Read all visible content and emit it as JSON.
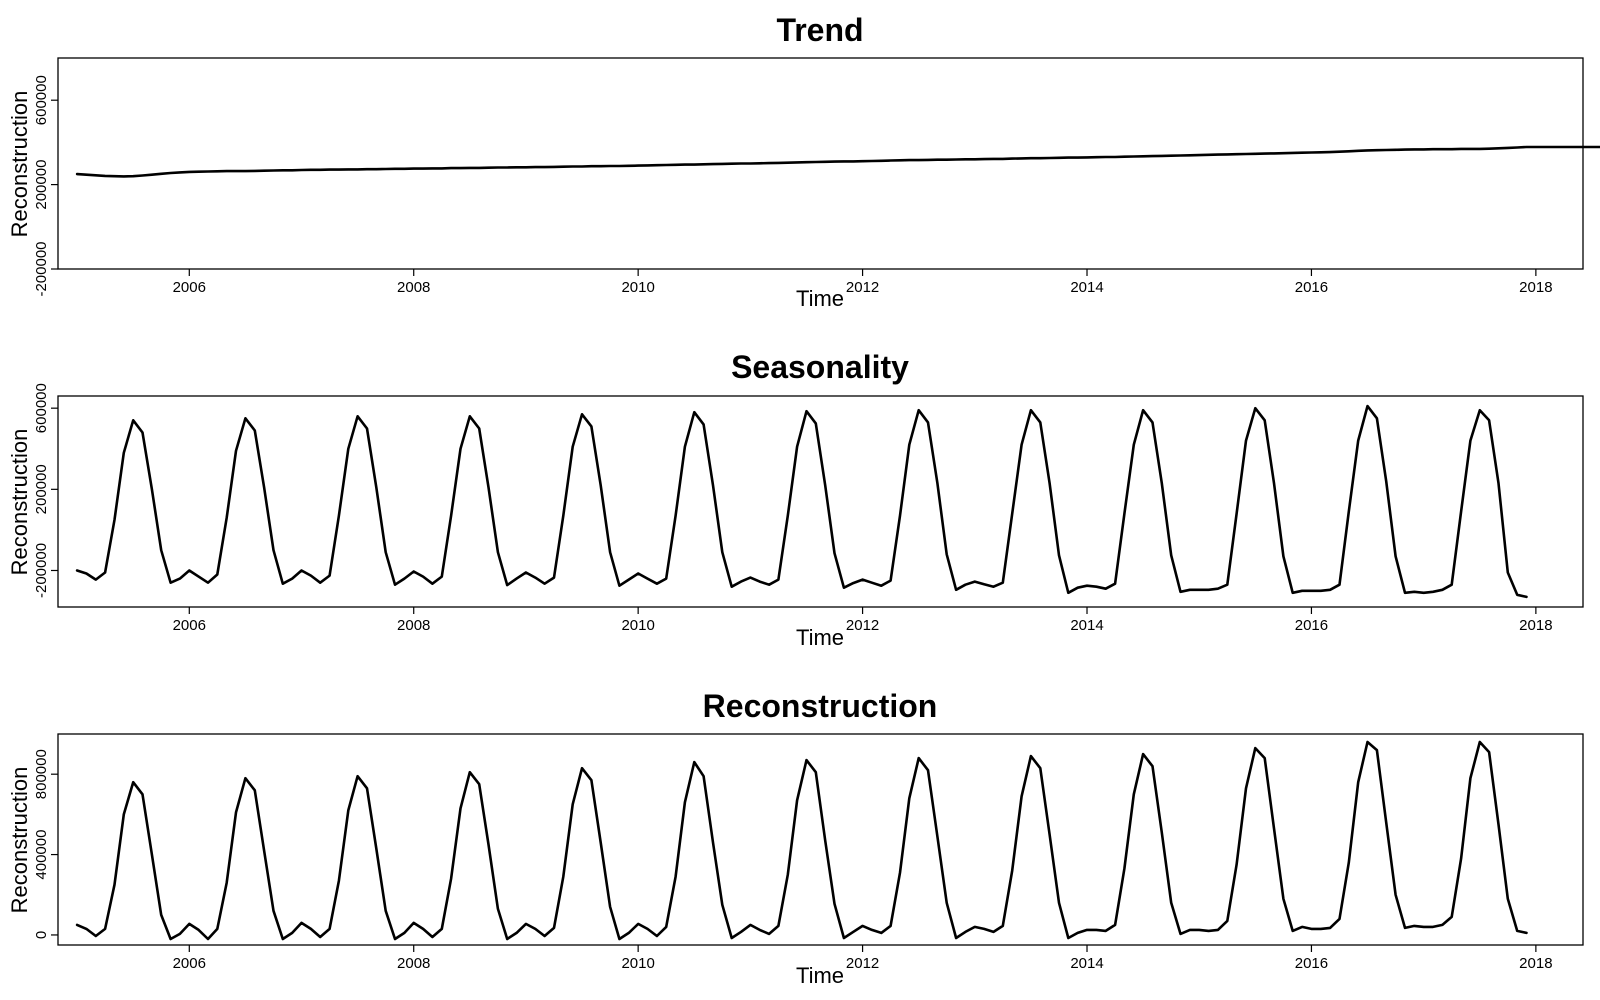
{
  "chart_data": [
    {
      "type": "line",
      "title": "Trend",
      "xlabel": "Time",
      "ylabel": "Reconstruction",
      "xlim": [
        2004.83,
        2018.42
      ],
      "ylim": [
        -200000,
        800000
      ],
      "xticks": [
        "2006",
        "2008",
        "2010",
        "2012",
        "2014",
        "2016",
        "2018"
      ],
      "yticks": [
        "-200000",
        "200000",
        "600000"
      ],
      "x_start": 2005.0,
      "x_step": 0.08333333,
      "series": [
        {
          "values": [
            250000,
            247000,
            244000,
            241000,
            240000,
            239000,
            240000,
            243000,
            247000,
            251000,
            255000,
            258000,
            260000,
            261000,
            262000,
            263000,
            264000,
            264000,
            264000,
            265000,
            266000,
            267000,
            268000,
            268000,
            269000,
            270000,
            270000,
            271000,
            271000,
            272000,
            272000,
            273000,
            273000,
            274000,
            275000,
            275000,
            276000,
            276000,
            277000,
            277000,
            278000,
            278000,
            279000,
            279000,
            280000,
            281000,
            281000,
            282000,
            282000,
            283000,
            283000,
            284000,
            285000,
            286000,
            286000,
            287000,
            287000,
            288000,
            288000,
            289000,
            290000,
            291000,
            292000,
            293000,
            294000,
            295000,
            295000,
            296000,
            297000,
            298000,
            299000,
            300000,
            300000,
            301000,
            302000,
            303000,
            304000,
            305000,
            306000,
            307000,
            308000,
            309000,
            310000,
            310000,
            311000,
            312000,
            313000,
            314000,
            315000,
            316000,
            316000,
            317000,
            318000,
            318000,
            319000,
            320000,
            320000,
            321000,
            322000,
            322000,
            323000,
            324000,
            325000,
            325000,
            326000,
            327000,
            328000,
            328000,
            329000,
            330000,
            331000,
            331000,
            332000,
            333000,
            334000,
            335000,
            336000,
            337000,
            338000,
            339000,
            340000,
            341000,
            342000,
            343000,
            344000,
            345000,
            346000,
            347000,
            348000,
            349000,
            350000,
            351000,
            352000,
            353000,
            354000,
            356000,
            358000,
            360000,
            362000,
            363000,
            364000,
            365000,
            366000,
            367000,
            367000,
            368000,
            368000,
            368000,
            369000,
            369000,
            369000,
            370000,
            372000,
            374000,
            376000,
            378000,
            378000,
            378000,
            378000,
            378000,
            378000,
            378000,
            378000,
            378000,
            378000,
            378000,
            378000,
            379000,
            382000,
            386000,
            390000,
            394000,
            398000,
            402000,
            405000,
            408000,
            411000,
            412000,
            408000,
            403000,
            398000,
            394000,
            392000
          ]
        }
      ]
    },
    {
      "type": "line",
      "title": "Seasonality",
      "xlabel": "Time",
      "ylabel": "Reconstruction",
      "xlim": [
        2004.83,
        2018.42
      ],
      "ylim": [
        -380000,
        660000
      ],
      "xticks": [
        "2006",
        "2008",
        "2010",
        "2012",
        "2014",
        "2016",
        "2018"
      ],
      "yticks": [
        "-200000",
        "200000",
        "600000"
      ],
      "x_start": 2005.0,
      "x_step": 0.08333333,
      "series": [
        {
          "values": [
            -200000,
            -215000,
            -245000,
            -210000,
            50000,
            380000,
            540000,
            480000,
            200000,
            -100000,
            -260000,
            -240000,
            -200000,
            -230000,
            -260000,
            -220000,
            60000,
            390000,
            550000,
            490000,
            210000,
            -100000,
            -265000,
            -240000,
            -200000,
            -225000,
            -260000,
            -225000,
            70000,
            400000,
            560000,
            500000,
            210000,
            -110000,
            -270000,
            -240000,
            -205000,
            -230000,
            -265000,
            -230000,
            70000,
            400000,
            560000,
            500000,
            210000,
            -110000,
            -272000,
            -240000,
            -210000,
            -235000,
            -265000,
            -235000,
            70000,
            410000,
            570000,
            510000,
            220000,
            -110000,
            -275000,
            -245000,
            -215000,
            -240000,
            -265000,
            -240000,
            70000,
            410000,
            580000,
            520000,
            220000,
            -110000,
            -280000,
            -255000,
            -235000,
            -255000,
            -270000,
            -245000,
            70000,
            410000,
            585000,
            525000,
            220000,
            -115000,
            -285000,
            -262000,
            -245000,
            -260000,
            -275000,
            -250000,
            70000,
            420000,
            590000,
            530000,
            230000,
            -120000,
            -295000,
            -270000,
            -255000,
            -268000,
            -280000,
            -260000,
            80000,
            420000,
            590000,
            530000,
            230000,
            -125000,
            -310000,
            -285000,
            -275000,
            -280000,
            -290000,
            -265000,
            80000,
            420000,
            590000,
            530000,
            230000,
            -125000,
            -305000,
            -295000,
            -295000,
            -295000,
            -290000,
            -270000,
            80000,
            440000,
            600000,
            540000,
            230000,
            -130000,
            -310000,
            -300000,
            -300000,
            -300000,
            -295000,
            -270000,
            90000,
            440000,
            610000,
            550000,
            240000,
            -130000,
            -310000,
            -305000,
            -310000,
            -305000,
            -295000,
            -270000,
            90000,
            440000,
            590000,
            540000,
            230000,
            -210000,
            -320000,
            -330000
          ]
        }
      ]
    },
    {
      "type": "line",
      "title": "Reconstruction",
      "xlabel": "Time",
      "ylabel": "Reconstruction",
      "xlim": [
        2004.83,
        2018.42
      ],
      "ylim": [
        -50000,
        1000000
      ],
      "xticks": [
        "2006",
        "2008",
        "2010",
        "2012",
        "2014",
        "2016",
        "2018"
      ],
      "yticks": [
        "0",
        "400000",
        "800000"
      ],
      "x_start": 2005.0,
      "x_step": 0.08333333,
      "series": [
        {
          "values": [
            50000,
            30000,
            -5000,
            30000,
            250000,
            600000,
            760000,
            700000,
            400000,
            100000,
            -20000,
            5000,
            55000,
            25000,
            -20000,
            30000,
            260000,
            610000,
            780000,
            720000,
            420000,
            120000,
            -20000,
            10000,
            60000,
            30000,
            -10000,
            30000,
            270000,
            620000,
            790000,
            730000,
            430000,
            120000,
            -20000,
            10000,
            60000,
            30000,
            -10000,
            30000,
            280000,
            630000,
            810000,
            750000,
            450000,
            130000,
            -20000,
            10000,
            55000,
            30000,
            -5000,
            35000,
            290000,
            650000,
            830000,
            770000,
            460000,
            140000,
            -20000,
            10000,
            55000,
            30000,
            -5000,
            40000,
            290000,
            660000,
            860000,
            790000,
            460000,
            150000,
            -15000,
            15000,
            50000,
            25000,
            5000,
            45000,
            300000,
            670000,
            870000,
            810000,
            470000,
            155000,
            -15000,
            15000,
            45000,
            25000,
            10000,
            45000,
            310000,
            680000,
            880000,
            820000,
            490000,
            160000,
            -15000,
            15000,
            40000,
            30000,
            15000,
            45000,
            320000,
            690000,
            890000,
            830000,
            500000,
            160000,
            -15000,
            10000,
            25000,
            25000,
            20000,
            50000,
            330000,
            700000,
            900000,
            840000,
            510000,
            160000,
            5000,
            25000,
            25000,
            20000,
            25000,
            70000,
            350000,
            730000,
            930000,
            880000,
            530000,
            180000,
            20000,
            40000,
            30000,
            30000,
            35000,
            80000,
            360000,
            760000,
            960000,
            920000,
            560000,
            200000,
            35000,
            45000,
            40000,
            40000,
            50000,
            90000,
            380000,
            780000,
            960000,
            910000,
            550000,
            180000,
            20000,
            10000
          ]
        }
      ]
    }
  ]
}
